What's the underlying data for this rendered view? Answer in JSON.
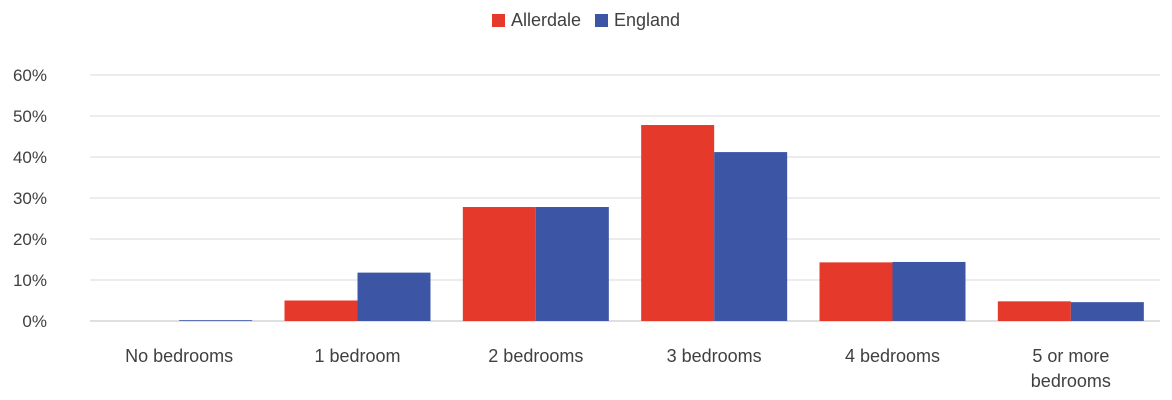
{
  "chart_data": {
    "type": "bar",
    "categories": [
      "No bedrooms",
      "1 bedroom",
      "2 bedrooms",
      "3 bedrooms",
      "4 bedrooms",
      "5 or more bedrooms"
    ],
    "category_lines": [
      [
        "No bedrooms"
      ],
      [
        "1 bedroom"
      ],
      [
        "2 bedrooms"
      ],
      [
        "3 bedrooms"
      ],
      [
        "4 bedrooms"
      ],
      [
        "5 or more",
        "bedrooms"
      ]
    ],
    "series": [
      {
        "name": "Allerdale",
        "color": "#e53a2b",
        "values": [
          0.0,
          5.0,
          27.8,
          47.8,
          14.3,
          4.8
        ]
      },
      {
        "name": "England",
        "color": "#3c56a5",
        "values": [
          0.2,
          11.8,
          27.8,
          41.2,
          14.4,
          4.6
        ]
      }
    ],
    "ylim": [
      0,
      60
    ],
    "yticks": [
      0,
      10,
      20,
      30,
      40,
      50,
      60
    ],
    "ytick_labels": [
      "0%",
      "10%",
      "20%",
      "30%",
      "40%",
      "50%",
      "60%"
    ],
    "grid": true,
    "legend_position": "top-center",
    "title": "",
    "xlabel": "",
    "ylabel": ""
  }
}
